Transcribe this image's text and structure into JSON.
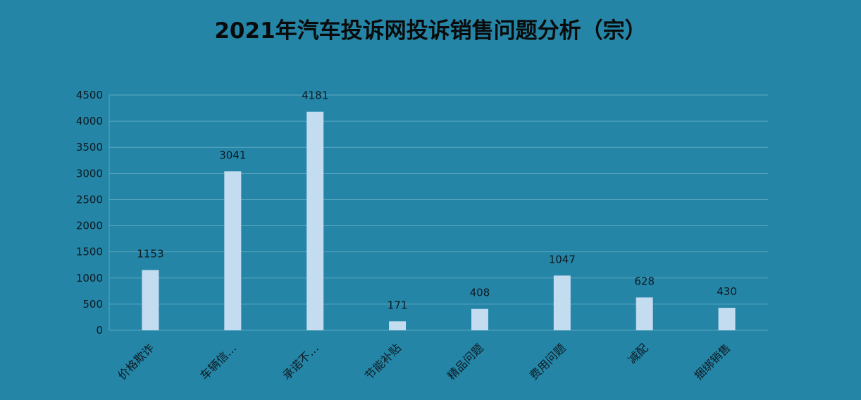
{
  "chart_data": {
    "type": "bar",
    "title": "2021年汽车投诉网投诉销售问题分析（宗）",
    "categories": [
      "价格欺诈",
      "车辆信…",
      "承诺不…",
      "节能补贴",
      "精品问题",
      "费用问题",
      "减配",
      "捆绑销售"
    ],
    "values": [
      1153,
      3041,
      4181,
      171,
      408,
      1047,
      628,
      430
    ],
    "xlabel": "",
    "ylabel": "",
    "ylim": [
      0,
      4500
    ],
    "yticks": [
      0,
      500,
      1000,
      1500,
      2000,
      2500,
      3000,
      3500,
      4000,
      4500
    ],
    "grid": true,
    "legend": "none",
    "data_labels": true,
    "colors": {
      "background": "#2485a6",
      "bar": "#c4dcf0",
      "gridline": "#5aa6c0",
      "text": "#0e1a22"
    }
  }
}
